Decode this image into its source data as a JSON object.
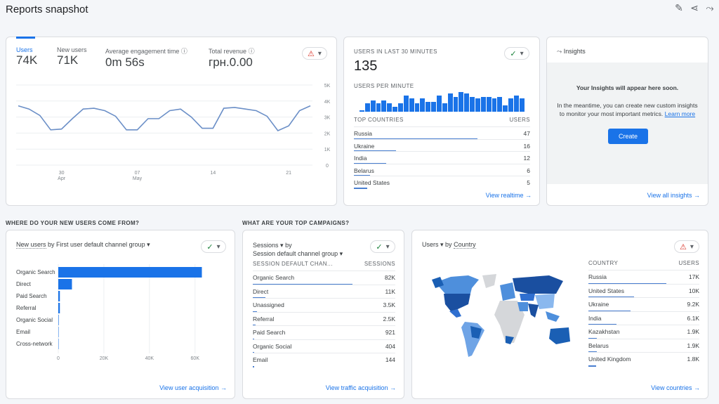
{
  "header": {
    "title": "Reports snapshot",
    "icons": [
      "edit-icon",
      "share-icon",
      "insights-icon"
    ]
  },
  "overview": {
    "metrics": [
      {
        "label": "Users",
        "value": "74K"
      },
      {
        "label": "New users",
        "value": "71K"
      },
      {
        "label": "Average engagement time",
        "value": "0m 56s"
      },
      {
        "label": "Total revenue",
        "value": "грн.0.00"
      }
    ],
    "status_icon": "warning-icon",
    "chart_data": {
      "type": "line",
      "y_ticks": [
        "5K",
        "4K",
        "3K",
        "2K",
        "1K",
        "0"
      ],
      "ylim": [
        0,
        5000
      ],
      "x_ticks": [
        {
          "day": "30",
          "month": "Apr",
          "index": 4
        },
        {
          "day": "07",
          "month": "May",
          "index": 11
        },
        {
          "day": "14",
          "month": "",
          "index": 18
        },
        {
          "day": "21",
          "month": "",
          "index": 25
        }
      ],
      "values": [
        3700,
        3500,
        3100,
        2200,
        2250,
        2900,
        3500,
        3550,
        3400,
        3050,
        2200,
        2200,
        2900,
        2900,
        3400,
        3500,
        3000,
        2300,
        2300,
        3550,
        3600,
        3500,
        3400,
        3050,
        2150,
        2450,
        3400,
        3700
      ],
      "color": "#6b8fc7"
    }
  },
  "realtime": {
    "label": "USERS IN LAST 30 MINUTES",
    "value": "135",
    "per_minute_label": "USERS PER MINUTE",
    "status_icon": "check-circle-icon",
    "per_minute": [
      1,
      5,
      7,
      5,
      7,
      5,
      3,
      5,
      10,
      8,
      5,
      8,
      6,
      6,
      10,
      5,
      11,
      9,
      12,
      11,
      9,
      8,
      9,
      9,
      8,
      9,
      4,
      8,
      10,
      8
    ],
    "table_header": [
      "TOP COUNTRIES",
      "USERS"
    ],
    "rows": [
      {
        "name": "Russia",
        "value": "47",
        "pct": 100
      },
      {
        "name": "Ukraine",
        "value": "16",
        "pct": 34
      },
      {
        "name": "India",
        "value": "12",
        "pct": 26
      },
      {
        "name": "Belarus",
        "value": "6",
        "pct": 13
      },
      {
        "name": "United States",
        "value": "5",
        "pct": 11
      }
    ],
    "link": "View realtime"
  },
  "insights": {
    "title": "Insights",
    "heading": "Your Insights will appear here soon.",
    "body": "In the meantime, you can create new custom insights to monitor your most important metrics.",
    "learn_more": "Learn more",
    "create": "Create",
    "link": "View all insights"
  },
  "sections": {
    "new_users": "WHERE DO YOUR NEW USERS COME FROM?",
    "campaigns": "WHAT ARE YOUR TOP CAMPAIGNS?"
  },
  "acquisition": {
    "title_metric": "New users",
    "title_rest": "by First user default channel group",
    "status_icon": "check-circle-icon",
    "chart_data": {
      "type": "bar",
      "orientation": "horizontal",
      "categories": [
        "Organic Search",
        "Direct",
        "Paid Search",
        "Referral",
        "Organic Social",
        "Email",
        "Cross-network"
      ],
      "values": [
        63000,
        6000,
        700,
        700,
        200,
        30,
        10
      ],
      "x_ticks": [
        "0",
        "20K",
        "40K",
        "60K"
      ],
      "xlim": [
        0,
        65000
      ],
      "color": "#1a73e8"
    },
    "link": "View user acquisition"
  },
  "campaigns": {
    "metric": "Sessions",
    "by": "by",
    "dimension": "Session default channel group",
    "status_icon": "check-circle-icon",
    "table_header": [
      "SESSION DEFAULT CHAN...",
      "SESSIONS"
    ],
    "rows": [
      {
        "name": "Organic Search",
        "value": "82K",
        "pct": 100
      },
      {
        "name": "Direct",
        "value": "11K",
        "pct": 13
      },
      {
        "name": "Unassigned",
        "value": "3.5K",
        "pct": 4
      },
      {
        "name": "Referral",
        "value": "2.5K",
        "pct": 3
      },
      {
        "name": "Paid Search",
        "value": "921",
        "pct": 1
      },
      {
        "name": "Organic Social",
        "value": "404",
        "pct": 0.5
      },
      {
        "name": "Email",
        "value": "144",
        "pct": 0.2
      }
    ],
    "link": "View traffic acquisition"
  },
  "countries": {
    "metric": "Users",
    "by": "by",
    "dimension": "Country",
    "status_icon": "warning-icon",
    "table_header": [
      "COUNTRY",
      "USERS"
    ],
    "rows": [
      {
        "name": "Russia",
        "value": "17K",
        "pct": 100
      },
      {
        "name": "United States",
        "value": "10K",
        "pct": 59
      },
      {
        "name": "Ukraine",
        "value": "9.2K",
        "pct": 54
      },
      {
        "name": "India",
        "value": "6.1K",
        "pct": 36
      },
      {
        "name": "Kazakhstan",
        "value": "1.9K",
        "pct": 11
      },
      {
        "name": "Belarus",
        "value": "1.9K",
        "pct": 11
      },
      {
        "name": "United Kingdom",
        "value": "1.8K",
        "pct": 10
      }
    ],
    "link": "View countries"
  }
}
